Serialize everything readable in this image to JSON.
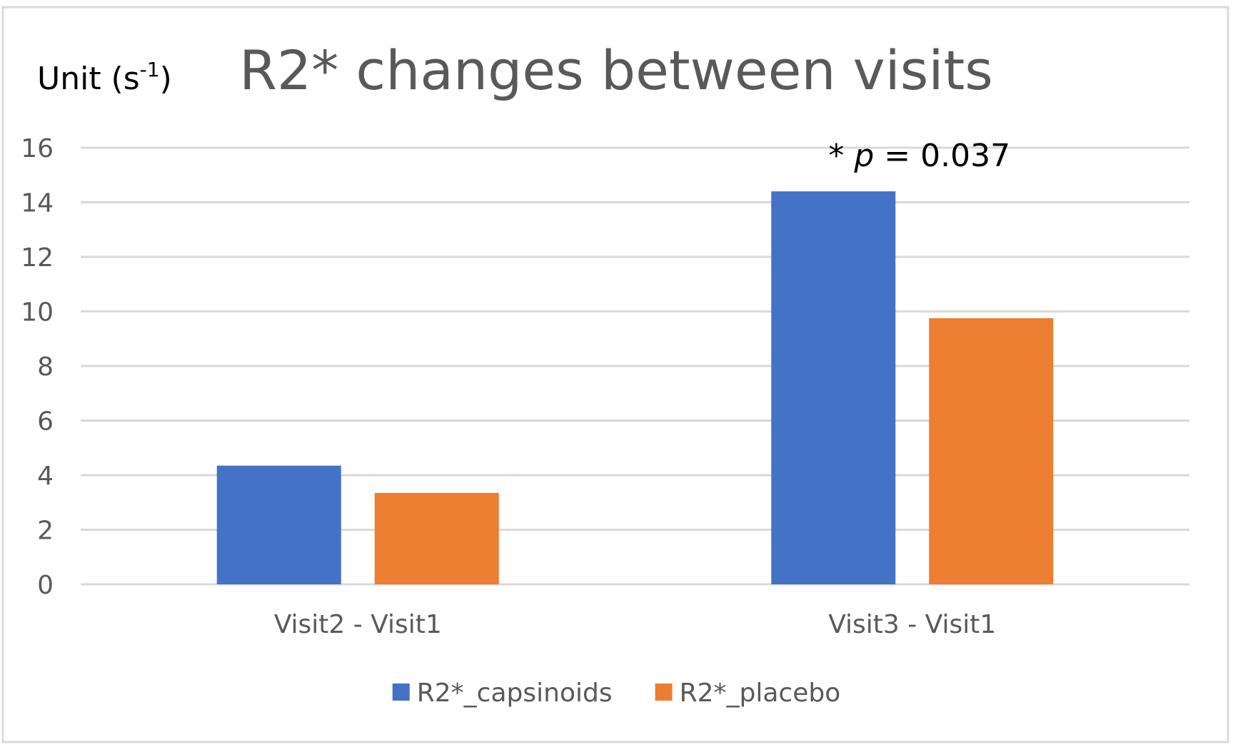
{
  "chart_data": {
    "type": "bar",
    "title": "R2* changes between visits",
    "ylabel": "Unit (s",
    "ylabel_superscript": "-1",
    "ylabel_close": ")",
    "xlabel": "",
    "categories": [
      "Visit2 - Visit1",
      "Visit3 - Visit1"
    ],
    "series": [
      {
        "name": "R2*_capsinoids",
        "color": "#4472c4",
        "values": [
          4.35,
          14.4
        ]
      },
      {
        "name": "R2*_placebo",
        "color": "#ed7d31",
        "values": [
          3.35,
          9.75
        ]
      }
    ],
    "ylim": [
      0,
      16
    ],
    "yticks": [
      "0",
      "2",
      "4",
      "6",
      "8",
      "10",
      "12",
      "14",
      "16"
    ],
    "grid": true,
    "legend_position": "bottom",
    "annotation": {
      "prefix": "* ",
      "italic_part": "p",
      "suffix": " = 0.037",
      "category_index": 1
    }
  }
}
